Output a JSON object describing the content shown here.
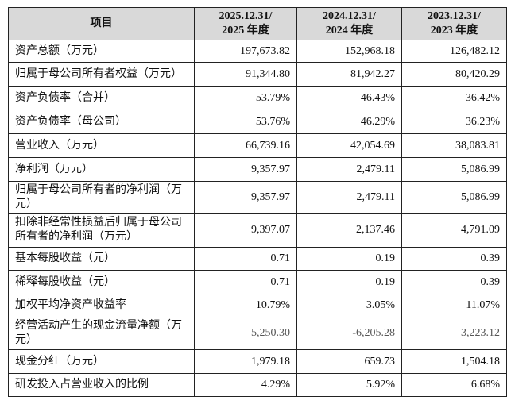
{
  "table": {
    "header": [
      "项目",
      "2025.12.31/\n2025 年度",
      "2024.12.31/\n2024 年度",
      "2023.12.31/\n2023 年度"
    ],
    "rows": [
      [
        "资产总额（万元）",
        "197,673.82",
        "152,968.18",
        "126,482.12"
      ],
      [
        "归属于母公司所有者权益（万元）",
        "91,344.80",
        "81,942.27",
        "80,420.29"
      ],
      [
        "资产负债率（合并）",
        "53.79%",
        "46.43%",
        "36.42%"
      ],
      [
        "资产负债率（母公司）",
        "53.76%",
        "46.29%",
        "36.23%"
      ],
      [
        "营业收入（万元）",
        "66,739.16",
        "42,054.69",
        "38,083.81"
      ],
      [
        "净利润（万元）",
        "9,357.97",
        "2,479.11",
        "5,086.99"
      ],
      [
        "归属于母公司所有者的净利润（万元）",
        "9,357.97",
        "2,479.11",
        "5,086.99"
      ],
      [
        "扣除非经常性损益后归属于母公司所有者的净利润（万元）",
        "9,397.07",
        "2,137.46",
        "4,791.09"
      ],
      [
        "基本每股收益（元）",
        "0.71",
        "0.19",
        "0.39"
      ],
      [
        "稀释每股收益（元）",
        "0.71",
        "0.19",
        "0.39"
      ],
      [
        "加权平均净资产收益率",
        "10.79%",
        "3.05%",
        "11.07%"
      ],
      [
        "经营活动产生的现金流量净额（万元）",
        "5,250.30",
        "-6,205.28",
        "3,223.12"
      ],
      [
        "现金分红（万元）",
        "1,979.18",
        "659.73",
        "1,504.18"
      ],
      [
        "研发投入占营业收入的比例",
        "4.29%",
        "5.92%",
        "6.68%"
      ]
    ]
  }
}
